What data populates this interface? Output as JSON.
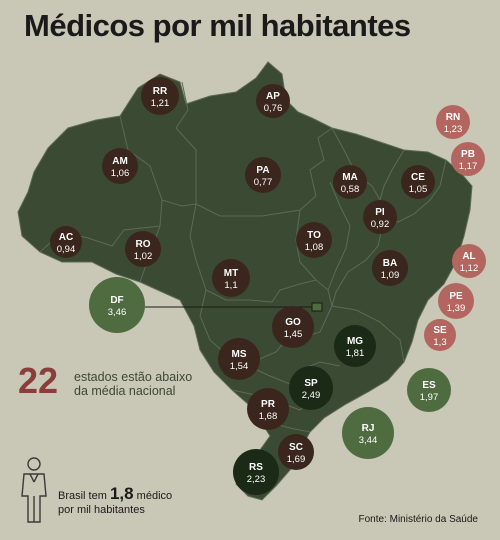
{
  "title": "Médicos por mil habitantes",
  "stat": {
    "number": "22",
    "text_line1": "estados estão abaixo",
    "text_line2": "da média nacional"
  },
  "average": {
    "prefix": "Brasil tem",
    "value": "1,8",
    "suffix": "médico",
    "line2": "por mil habitantes"
  },
  "source": "Fonte: Ministério da Saúde",
  "colors": {
    "background": "#c9c7b6",
    "map_fill": "#3a4a33",
    "map_border": "#5e6a55",
    "below_average": "#3a261d",
    "above_average_green": "#4f6b40",
    "dark_green": "#1a2a17",
    "coastal_red": "#b3665f"
  },
  "states": [
    {
      "id": "RR",
      "name": "RR",
      "value": "1,21",
      "category": "below"
    },
    {
      "id": "AP",
      "name": "AP",
      "value": "0,76",
      "category": "below"
    },
    {
      "id": "AM",
      "name": "AM",
      "value": "1,06",
      "category": "below"
    },
    {
      "id": "PA",
      "name": "PA",
      "value": "0,77",
      "category": "below"
    },
    {
      "id": "MA",
      "name": "MA",
      "value": "0,58",
      "category": "below"
    },
    {
      "id": "CE",
      "name": "CE",
      "value": "1,05",
      "category": "below"
    },
    {
      "id": "RN",
      "name": "RN",
      "value": "1,23",
      "category": "coastal"
    },
    {
      "id": "PB",
      "name": "PB",
      "value": "1,17",
      "category": "coastal"
    },
    {
      "id": "PI",
      "name": "PI",
      "value": "0,92",
      "category": "below"
    },
    {
      "id": "AC",
      "name": "AC",
      "value": "0,94",
      "category": "below"
    },
    {
      "id": "RO",
      "name": "RO",
      "value": "1,02",
      "category": "below"
    },
    {
      "id": "TO",
      "name": "TO",
      "value": "1,08",
      "category": "below"
    },
    {
      "id": "BA",
      "name": "BA",
      "value": "1,09",
      "category": "below"
    },
    {
      "id": "AL",
      "name": "AL",
      "value": "1,12",
      "category": "coastal"
    },
    {
      "id": "MT",
      "name": "MT",
      "value": "1,1",
      "category": "below"
    },
    {
      "id": "PE",
      "name": "PE",
      "value": "1,39",
      "category": "coastal"
    },
    {
      "id": "DF",
      "name": "DF",
      "value": "3,46",
      "category": "above"
    },
    {
      "id": "SE",
      "name": "SE",
      "value": "1,3",
      "category": "coastal"
    },
    {
      "id": "GO",
      "name": "GO",
      "value": "1,45",
      "category": "below"
    },
    {
      "id": "MS",
      "name": "MS",
      "value": "1,54",
      "category": "below"
    },
    {
      "id": "MG",
      "name": "MG",
      "value": "1,81",
      "category": "dark"
    },
    {
      "id": "ES",
      "name": "ES",
      "value": "1,97",
      "category": "above"
    },
    {
      "id": "SP",
      "name": "SP",
      "value": "2,49",
      "category": "dark"
    },
    {
      "id": "PR",
      "name": "PR",
      "value": "1,68",
      "category": "below"
    },
    {
      "id": "RJ",
      "name": "RJ",
      "value": "3,44",
      "category": "above"
    },
    {
      "id": "SC",
      "name": "SC",
      "value": "1,69",
      "category": "below"
    },
    {
      "id": "RS",
      "name": "RS",
      "value": "2,23",
      "category": "dark"
    }
  ]
}
